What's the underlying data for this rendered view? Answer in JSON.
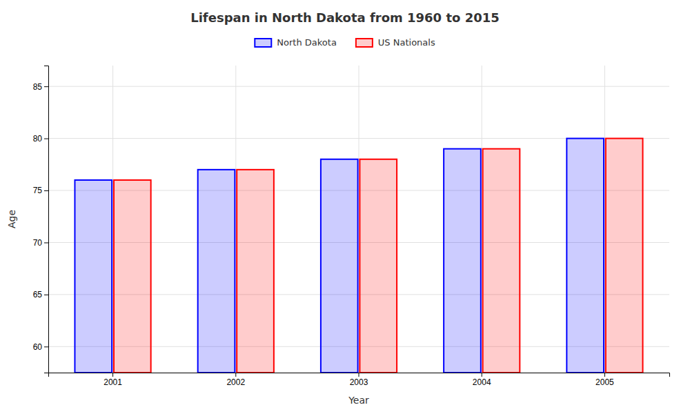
{
  "chart_data": {
    "type": "bar",
    "title": "Lifespan in North Dakota from 1960 to 2015",
    "x_label": "Year",
    "y_label": "Age",
    "categories": [
      "2001",
      "2002",
      "2003",
      "2004",
      "2005"
    ],
    "series": [
      {
        "name": "North Dakota",
        "color": "#0000ff",
        "values": [
          76.0,
          77.0,
          78.0,
          79.0,
          80.0
        ]
      },
      {
        "name": "US Nationals",
        "color": "#ff0000",
        "values": [
          76.0,
          77.0,
          78.0,
          79.0,
          80.0
        ]
      }
    ],
    "ylim": [
      57.5,
      87
    ],
    "yticks": [
      60,
      65,
      70,
      75,
      80,
      85
    ],
    "grid": true,
    "legend": "top"
  }
}
